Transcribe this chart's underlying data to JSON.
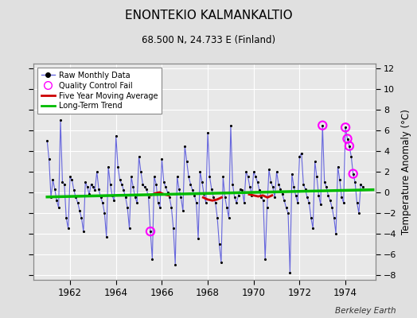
{
  "title": "ENONTEKIO KALMANKALTIO",
  "subtitle": "68.500 N, 24.733 E (Finland)",
  "ylabel": "Temperature Anomaly (°C)",
  "watermark": "Berkeley Earth",
  "ylim": [
    -8.5,
    12.5
  ],
  "yticks": [
    -8,
    -6,
    -4,
    -2,
    0,
    2,
    4,
    6,
    8,
    10,
    12
  ],
  "xlim": [
    1960.5,
    1475.3
  ],
  "xticks": [
    1962,
    1964,
    1966,
    1968,
    1970,
    1972,
    1974
  ],
  "bg_color": "#e0e0e0",
  "plot_bg_color": "#e8e8e8",
  "grid_color": "#ffffff",
  "raw_line_color": "#6666dd",
  "raw_dot_color": "#000000",
  "trend_color": "#00bb00",
  "ma_color": "#cc0000",
  "qc_color": "#ff00ff",
  "raw_data": [
    [
      1961.0,
      5.0
    ],
    [
      1961.083,
      3.2
    ],
    [
      1961.167,
      -0.5
    ],
    [
      1961.25,
      1.2
    ],
    [
      1961.333,
      0.3
    ],
    [
      1961.417,
      -0.8
    ],
    [
      1961.5,
      -1.5
    ],
    [
      1961.583,
      7.0
    ],
    [
      1961.667,
      1.0
    ],
    [
      1961.75,
      0.8
    ],
    [
      1961.833,
      -2.5
    ],
    [
      1961.917,
      -3.5
    ],
    [
      1962.0,
      1.5
    ],
    [
      1962.083,
      1.2
    ],
    [
      1962.167,
      0.2
    ],
    [
      1962.25,
      -0.5
    ],
    [
      1962.333,
      -1.0
    ],
    [
      1962.417,
      -1.8
    ],
    [
      1962.5,
      -2.5
    ],
    [
      1962.583,
      -3.8
    ],
    [
      1962.667,
      1.0
    ],
    [
      1962.75,
      0.5
    ],
    [
      1962.833,
      -0.2
    ],
    [
      1962.917,
      0.8
    ],
    [
      1963.0,
      0.5
    ],
    [
      1963.083,
      0.2
    ],
    [
      1963.167,
      2.0
    ],
    [
      1963.25,
      0.3
    ],
    [
      1963.333,
      -0.5
    ],
    [
      1963.417,
      -1.0
    ],
    [
      1963.5,
      -2.0
    ],
    [
      1963.583,
      -4.3
    ],
    [
      1963.667,
      2.5
    ],
    [
      1963.75,
      0.8
    ],
    [
      1963.833,
      -0.3
    ],
    [
      1963.917,
      -0.8
    ],
    [
      1964.0,
      5.5
    ],
    [
      1964.083,
      2.5
    ],
    [
      1964.167,
      1.2
    ],
    [
      1964.25,
      0.8
    ],
    [
      1964.333,
      0.2
    ],
    [
      1964.417,
      -0.5
    ],
    [
      1964.5,
      -1.5
    ],
    [
      1964.583,
      -3.5
    ],
    [
      1964.667,
      1.5
    ],
    [
      1964.75,
      0.5
    ],
    [
      1964.833,
      -0.5
    ],
    [
      1964.917,
      -1.0
    ],
    [
      1965.0,
      3.5
    ],
    [
      1965.083,
      2.0
    ],
    [
      1965.167,
      0.8
    ],
    [
      1965.25,
      0.5
    ],
    [
      1965.333,
      0.3
    ],
    [
      1965.417,
      -0.5
    ],
    [
      1965.5,
      -3.8
    ],
    [
      1965.583,
      -6.5
    ],
    [
      1965.667,
      1.5
    ],
    [
      1965.75,
      0.8
    ],
    [
      1965.833,
      -1.0
    ],
    [
      1965.917,
      -1.5
    ],
    [
      1966.0,
      3.2
    ],
    [
      1966.083,
      1.0
    ],
    [
      1966.167,
      0.5
    ],
    [
      1966.25,
      0.0
    ],
    [
      1966.333,
      -0.5
    ],
    [
      1966.417,
      -1.5
    ],
    [
      1966.5,
      -3.5
    ],
    [
      1966.583,
      -7.0
    ],
    [
      1966.667,
      1.5
    ],
    [
      1966.75,
      0.3
    ],
    [
      1966.833,
      -0.5
    ],
    [
      1966.917,
      -1.8
    ],
    [
      1967.0,
      4.5
    ],
    [
      1967.083,
      3.0
    ],
    [
      1967.167,
      1.5
    ],
    [
      1967.25,
      0.8
    ],
    [
      1967.333,
      0.2
    ],
    [
      1967.417,
      -0.3
    ],
    [
      1967.5,
      -1.0
    ],
    [
      1967.583,
      -4.5
    ],
    [
      1967.667,
      2.0
    ],
    [
      1967.75,
      1.0
    ],
    [
      1967.833,
      -0.2
    ],
    [
      1967.917,
      -1.0
    ],
    [
      1968.0,
      5.8
    ],
    [
      1968.083,
      1.5
    ],
    [
      1968.167,
      0.3
    ],
    [
      1968.25,
      -0.5
    ],
    [
      1968.333,
      -1.0
    ],
    [
      1968.417,
      -2.5
    ],
    [
      1968.5,
      -5.0
    ],
    [
      1968.583,
      -6.8
    ],
    [
      1968.667,
      1.5
    ],
    [
      1968.75,
      -0.5
    ],
    [
      1968.833,
      -1.5
    ],
    [
      1968.917,
      -2.5
    ],
    [
      1969.0,
      6.5
    ],
    [
      1969.083,
      0.8
    ],
    [
      1969.167,
      -0.5
    ],
    [
      1969.25,
      -1.0
    ],
    [
      1969.333,
      -0.3
    ],
    [
      1969.417,
      0.3
    ],
    [
      1969.5,
      0.2
    ],
    [
      1969.583,
      -1.0
    ],
    [
      1969.667,
      2.0
    ],
    [
      1969.75,
      1.5
    ],
    [
      1969.833,
      0.5
    ],
    [
      1969.917,
      -0.3
    ],
    [
      1970.0,
      2.0
    ],
    [
      1970.083,
      1.5
    ],
    [
      1970.167,
      1.0
    ],
    [
      1970.25,
      0.2
    ],
    [
      1970.333,
      -0.5
    ],
    [
      1970.417,
      -0.8
    ],
    [
      1970.5,
      -6.5
    ],
    [
      1970.583,
      -1.5
    ],
    [
      1970.667,
      2.2
    ],
    [
      1970.75,
      1.0
    ],
    [
      1970.833,
      0.5
    ],
    [
      1970.917,
      -0.5
    ],
    [
      1971.0,
      2.0
    ],
    [
      1971.083,
      0.8
    ],
    [
      1971.167,
      0.3
    ],
    [
      1971.25,
      -0.2
    ],
    [
      1971.333,
      -0.8
    ],
    [
      1971.417,
      -1.5
    ],
    [
      1971.5,
      -2.0
    ],
    [
      1971.583,
      -7.8
    ],
    [
      1971.667,
      1.8
    ],
    [
      1971.75,
      0.5
    ],
    [
      1971.833,
      -0.3
    ],
    [
      1971.917,
      -1.0
    ],
    [
      1972.0,
      3.5
    ],
    [
      1972.083,
      3.8
    ],
    [
      1972.167,
      0.8
    ],
    [
      1972.25,
      0.3
    ],
    [
      1972.333,
      -0.5
    ],
    [
      1972.417,
      -1.0
    ],
    [
      1972.5,
      -2.5
    ],
    [
      1972.583,
      -3.5
    ],
    [
      1972.667,
      3.0
    ],
    [
      1972.75,
      1.5
    ],
    [
      1972.833,
      -0.3
    ],
    [
      1972.917,
      -1.2
    ],
    [
      1973.0,
      6.5
    ],
    [
      1973.083,
      1.0
    ],
    [
      1973.167,
      0.5
    ],
    [
      1973.25,
      -0.3
    ],
    [
      1973.333,
      -0.8
    ],
    [
      1973.417,
      -1.5
    ],
    [
      1973.5,
      -2.5
    ],
    [
      1973.583,
      -4.0
    ],
    [
      1973.667,
      2.5
    ],
    [
      1973.75,
      1.2
    ],
    [
      1973.833,
      -0.5
    ],
    [
      1973.917,
      -1.0
    ],
    [
      1974.0,
      6.3
    ],
    [
      1974.083,
      5.2
    ],
    [
      1974.167,
      4.5
    ],
    [
      1974.25,
      3.5
    ],
    [
      1974.333,
      1.8
    ],
    [
      1974.417,
      1.0
    ],
    [
      1974.5,
      -1.0
    ],
    [
      1974.583,
      -2.0
    ],
    [
      1974.667,
      0.8
    ],
    [
      1974.75,
      0.5
    ]
  ],
  "qc_points": [
    [
      1965.5,
      -3.8
    ],
    [
      1973.0,
      6.5
    ],
    [
      1974.0,
      6.3
    ],
    [
      1974.083,
      5.2
    ],
    [
      1974.167,
      4.5
    ],
    [
      1974.333,
      1.8
    ]
  ],
  "ma_segments": [
    [
      [
        1965.5,
        -0.3
      ],
      [
        1965.7,
        -0.1
      ],
      [
        1965.9,
        0.0
      ],
      [
        1966.1,
        -0.2
      ],
      [
        1966.3,
        -0.3
      ]
    ],
    [
      [
        1967.8,
        -0.5
      ],
      [
        1968.0,
        -0.7
      ],
      [
        1968.2,
        -0.8
      ],
      [
        1968.4,
        -0.7
      ],
      [
        1968.6,
        -0.5
      ]
    ],
    [
      [
        1969.8,
        -0.2
      ],
      [
        1970.0,
        -0.3
      ],
      [
        1970.2,
        -0.4
      ],
      [
        1970.4,
        -0.3
      ],
      [
        1970.6,
        -0.5
      ],
      [
        1970.8,
        -0.3
      ]
    ]
  ],
  "trend_x": [
    1961.0,
    1475.3
  ],
  "trend_y": [
    -0.45,
    0.25
  ],
  "legend_labels": [
    "Raw Monthly Data",
    "Quality Control Fail",
    "Five Year Moving Average",
    "Long-Term Trend"
  ]
}
